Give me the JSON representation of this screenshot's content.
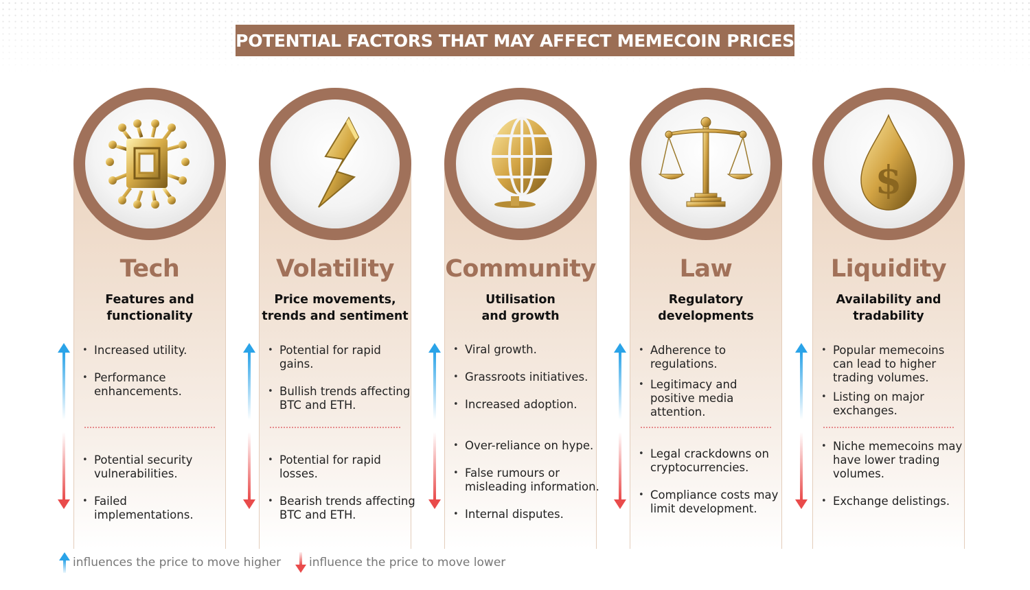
{
  "title": "POTENTIAL FACTORS THAT MAY AFFECT MEMECOIN PRICES",
  "colors": {
    "brand_brown": "#9b6e55",
    "heading_brown": "#a17159",
    "up_arrow_blue": "#2aa3e8",
    "down_arrow_red": "#e94b4b",
    "divider_pink": "#e58b8b"
  },
  "factors": [
    {
      "icon": "microchip-icon",
      "heading": "Tech",
      "subheading": [
        "Features and",
        "functionality"
      ],
      "positive": [
        "Increased utility.",
        "Performance enhancements."
      ],
      "negative": [
        "Potential security vulnerabilities.",
        "Failed implementations."
      ]
    },
    {
      "icon": "lightning-bolt-icon",
      "heading": "Volatility",
      "subheading": [
        "Price movements,",
        "trends and sentiment"
      ],
      "positive": [
        "Potential for rapid gains.",
        "Bullish trends affecting BTC and ETH."
      ],
      "negative": [
        "Potential for rapid losses.",
        "Bearish trends affecting BTC and ETH."
      ]
    },
    {
      "icon": "globe-icon",
      "heading": "Community",
      "subheading": [
        "Utilisation",
        "and growth"
      ],
      "positive": [
        "Viral growth.",
        "Grassroots initiatives.",
        "Increased adoption."
      ],
      "negative": [
        "Over-reliance on hype.",
        "False rumours or misleading information.",
        "Internal disputes."
      ]
    },
    {
      "icon": "scales-of-justice-icon",
      "heading": "Law",
      "subheading": [
        "Regulatory",
        "developments"
      ],
      "positive": [
        "Adherence to regulations.",
        "Legitimacy and positive media attention."
      ],
      "negative": [
        "Legal crackdowns on cryptocurrencies.",
        "Compliance costs may limit development."
      ]
    },
    {
      "icon": "dollar-drop-icon",
      "heading": "Liquidity",
      "subheading": [
        "Availability and",
        "tradability"
      ],
      "positive": [
        "Popular memecoins can lead to higher trading volumes.",
        "Listing on major exchanges."
      ],
      "negative": [
        "Niche memecoins may have lower trading volumes.",
        "Exchange delistings."
      ]
    }
  ],
  "legend": {
    "up": "influences the price to move higher",
    "down": "influence the price to move lower"
  }
}
